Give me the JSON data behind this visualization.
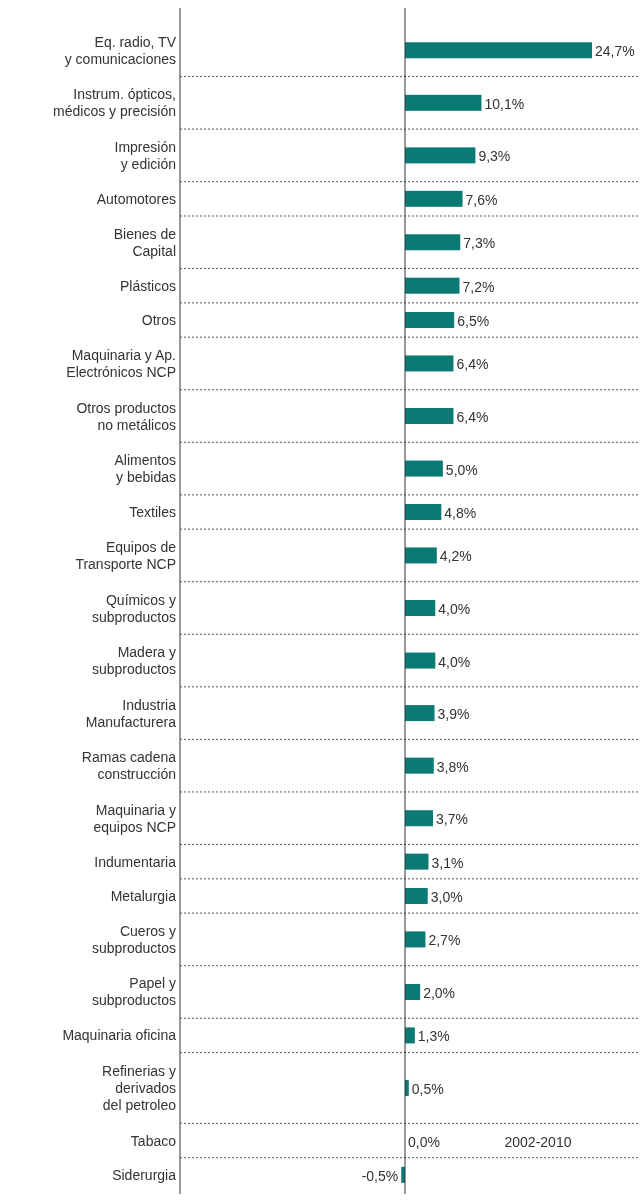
{
  "chart_data": {
    "type": "bar",
    "orientation": "horizontal",
    "data_labels": true,
    "grid": "y",
    "color": "#0b7a75",
    "categories": [
      "Eq. radio, TV\ny comunicaciones",
      "Instrum. ópticos,\nmédicos y precisión",
      "Impresión\ny edición",
      "Automotores",
      "Bienes de\nCapital",
      "Plásticos",
      "Otros",
      "Maquinaria y Ap.\nElectrónicos NCP",
      "Otros productos\nno metálicos",
      "Alimentos\ny bebidas",
      "Textiles",
      "Equipos de\nTransporte NCP",
      "Químicos y\nsubproductos",
      "Madera y\nsubproductos",
      "Industria\nManufacturera",
      "Ramas cadena\nconstrucción",
      "Maquinaria y\nequipos NCP",
      "Indumentaria",
      "Metalurgia",
      "Cueros y\nsubproductos",
      "Papel y\nsubproductos",
      "Maquinaria oficina",
      "Refinerias y\nderivados\ndel petroleo",
      "Tabaco",
      "Siderurgia"
    ],
    "values": [
      24.7,
      10.1,
      9.3,
      7.6,
      7.3,
      7.2,
      6.5,
      6.4,
      6.4,
      5.0,
      4.8,
      4.2,
      4.0,
      4.0,
      3.9,
      3.8,
      3.7,
      3.1,
      3.0,
      2.7,
      2.0,
      1.3,
      0.5,
      0.0,
      -0.5
    ],
    "value_labels": [
      "24,7%",
      "10,1%",
      "9,3%",
      "7,6%",
      "7,3%",
      "7,2%",
      "6,5%",
      "6,4%",
      "6,4%",
      "5,0%",
      "4,8%",
      "4,2%",
      "4,0%",
      "4,0%",
      "3,9%",
      "3,8%",
      "3,7%",
      "3,1%",
      "3,0%",
      "2,7%",
      "2,0%",
      "1,3%",
      "0,5%",
      "0,0%",
      "-0,5%"
    ],
    "annotations": [
      "2002-2010"
    ]
  }
}
